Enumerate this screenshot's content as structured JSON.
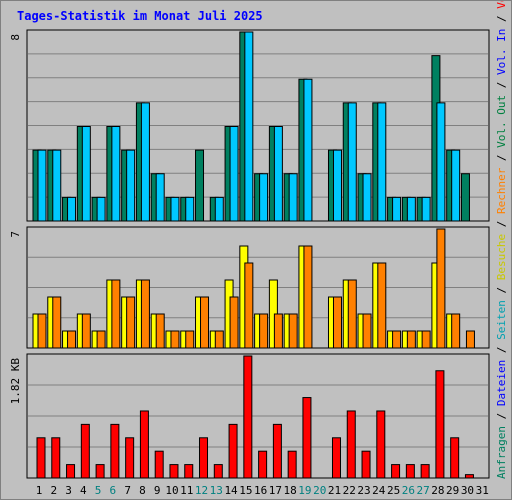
{
  "title": "Tages-Statistik im Monat Juli 2025",
  "background": "#c0c0c0",
  "colors": {
    "title": "#0000ff",
    "anfragen": "#008060",
    "dateien": "#00c8ff",
    "seiten": "#00a0b0",
    "besuche": "#ffff00",
    "rechner": "#ff8000",
    "vol_in": "#0000ff",
    "vol_out": "#008040",
    "volumen": "#ff0000",
    "weekend_tick": "#008080",
    "tick": "#000000"
  },
  "chart_data": {
    "type": "bar",
    "title": "Tages-Statistik im Monat Juli 2025",
    "x": [
      "1",
      "2",
      "3",
      "4",
      "5",
      "6",
      "7",
      "8",
      "9",
      "10",
      "11",
      "12",
      "13",
      "14",
      "15",
      "16",
      "17",
      "18",
      "19",
      "20",
      "21",
      "22",
      "23",
      "24",
      "25",
      "26",
      "27",
      "28",
      "29",
      "30",
      "31"
    ],
    "weekend_days": [
      "5",
      "6",
      "12",
      "13",
      "19",
      "20",
      "26",
      "27"
    ],
    "grid": true,
    "legend": "right",
    "panels": [
      {
        "id": "top",
        "axis_label": "8",
        "max": 8,
        "series": [
          {
            "name": "Anfragen",
            "color": "#008060",
            "values": [
              3,
              3,
              1,
              4,
              1,
              4,
              3,
              5,
              2,
              1,
              1,
              3,
              1,
              4,
              8,
              2,
              4,
              2,
              6,
              0,
              3,
              5,
              2,
              5,
              1,
              1,
              1,
              7,
              3,
              2,
              0
            ]
          },
          {
            "name": "Dateien",
            "color": "#00c8ff",
            "values": [
              3,
              3,
              1,
              4,
              1,
              4,
              3,
              5,
              2,
              1,
              1,
              0,
              1,
              4,
              8,
              2,
              4,
              2,
              6,
              0,
              3,
              5,
              2,
              5,
              1,
              1,
              1,
              5,
              3,
              0,
              0
            ]
          }
        ]
      },
      {
        "id": "middle",
        "axis_label": "7",
        "max": 7,
        "series": [
          {
            "name": "Besuche",
            "color": "#ffff00",
            "values": [
              2,
              3,
              1,
              2,
              1,
              4,
              3,
              4,
              2,
              1,
              1,
              3,
              1,
              4,
              6,
              2,
              4,
              2,
              6,
              0,
              3,
              4,
              2,
              5,
              1,
              1,
              1,
              5,
              2,
              0,
              0
            ]
          },
          {
            "name": "Rechner",
            "color": "#ff8000",
            "values": [
              2,
              3,
              1,
              2,
              1,
              4,
              3,
              4,
              2,
              1,
              1,
              3,
              1,
              3,
              5,
              2,
              2,
              2,
              6,
              0,
              3,
              4,
              2,
              5,
              1,
              1,
              1,
              7,
              2,
              1,
              0
            ]
          }
        ]
      },
      {
        "id": "bottom",
        "axis_label": "1.82 KB",
        "max": 1.82,
        "series": [
          {
            "name": "Volumen",
            "color": "#ff0000",
            "values": [
              0.6,
              0.6,
              0.2,
              0.8,
              0.2,
              0.8,
              0.6,
              1.0,
              0.4,
              0.2,
              0.2,
              0.6,
              0.2,
              0.8,
              1.82,
              0.4,
              0.8,
              0.4,
              1.2,
              0.0,
              0.6,
              1.0,
              0.4,
              1.0,
              0.2,
              0.2,
              0.2,
              1.6,
              0.6,
              0.05,
              0.0
            ]
          }
        ]
      }
    ]
  },
  "legend_right": [
    {
      "text": "Anfragen",
      "color": "#008060"
    },
    {
      "text": " / ",
      "color": "#000000"
    },
    {
      "text": "Dateien",
      "color": "#0000ff"
    },
    {
      "text": " / ",
      "color": "#000000"
    },
    {
      "text": "Seiten",
      "color": "#00a0b0"
    },
    {
      "text": " / ",
      "color": "#000000"
    },
    {
      "text": "Besuche",
      "color": "#c8c800"
    },
    {
      "text": " / ",
      "color": "#000000"
    },
    {
      "text": "Rechner",
      "color": "#ff8000"
    },
    {
      "text": " / ",
      "color": "#000000"
    },
    {
      "text": "Vol. Out",
      "color": "#008040"
    },
    {
      "text": " / ",
      "color": "#000000"
    },
    {
      "text": "Vol. In",
      "color": "#0000ff"
    },
    {
      "text": " / ",
      "color": "#000000"
    },
    {
      "text": "Volumen",
      "color": "#ff0000"
    }
  ]
}
